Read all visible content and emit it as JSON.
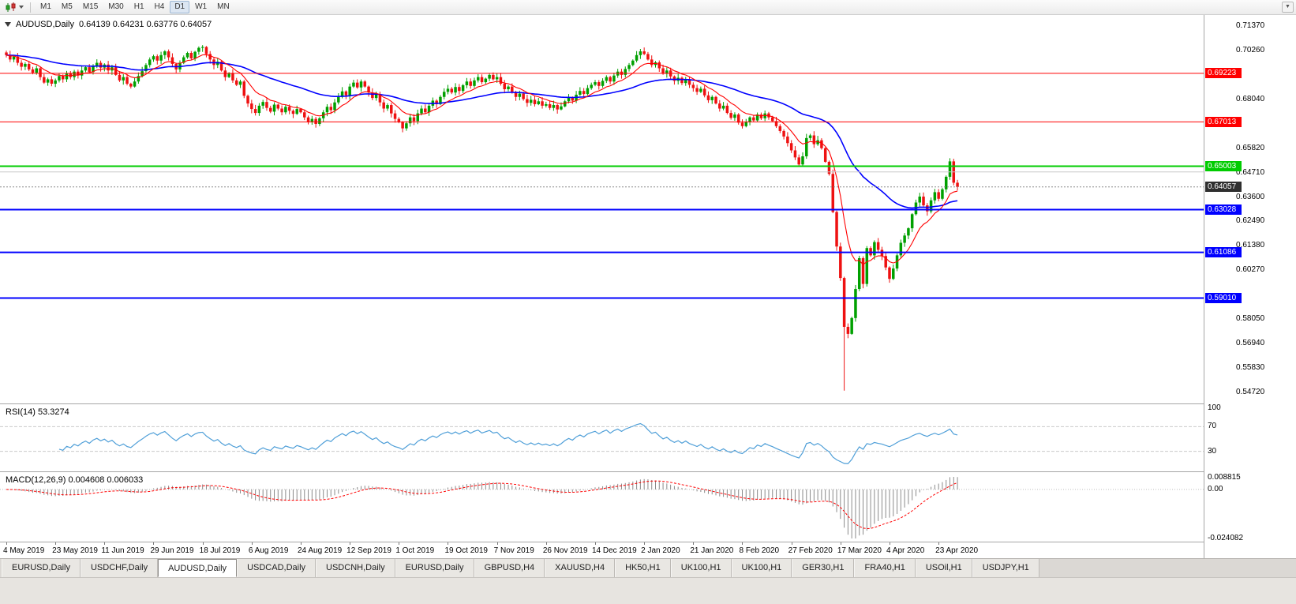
{
  "toolbar": {
    "timeframes": [
      "M1",
      "M5",
      "M15",
      "M30",
      "H1",
      "H4",
      "D1",
      "W1",
      "MN"
    ],
    "active_timeframe": "D1"
  },
  "chart": {
    "symbol_period": "AUDUSD,Daily",
    "ohlc": "0.64139 0.64231 0.63776 0.64057",
    "current_price": 0.64057,
    "current_price_label": "0.64057",
    "up_color": "#00a000",
    "down_color": "#ee1111",
    "current_badge_color": "#2f2f2f"
  },
  "price_scale": {
    "ticks": [
      "0.71370",
      "0.70260",
      "0.68040",
      "0.65820",
      "0.64710",
      "0.63600",
      "0.62490",
      "0.61380",
      "0.60270",
      "0.58050",
      "0.56940",
      "0.55830",
      "0.54720"
    ]
  },
  "levels": [
    {
      "price": 0.69223,
      "label": "0.69223",
      "color": "#ff0000",
      "badge": true,
      "width": 1
    },
    {
      "price": 0.67013,
      "label": "0.67013",
      "color": "#ff0000",
      "badge": true,
      "width": 1
    },
    {
      "price": 0.65003,
      "label": "0.65003",
      "color": "#00cc00",
      "badge": true,
      "width": 2
    },
    {
      "price": 0.6474,
      "label": "",
      "color": "#c8c8c8",
      "badge": false,
      "width": 1
    },
    {
      "price": 0.63028,
      "label": "0.63028",
      "color": "#0000ff",
      "badge": true,
      "width": 2
    },
    {
      "price": 0.61086,
      "label": "0.61086",
      "color": "#0000ff",
      "badge": true,
      "width": 2
    },
    {
      "price": 0.5901,
      "label": "0.59010",
      "color": "#0000ff",
      "badge": true,
      "width": 2
    }
  ],
  "rsi": {
    "label": "RSI(14)",
    "value": "53.3274",
    "period": 14,
    "scale": [
      "100",
      "70",
      "30"
    ],
    "line_color": "#4f9fd8"
  },
  "macd": {
    "label": "MACD(12,26,9)",
    "values": "0.004608 0.006033",
    "scale_max": "0.008815",
    "scale_zero": "0.00",
    "scale_min": "-0.024082",
    "histogram_color": "#8a8a8a",
    "signal_color": "#ff0000"
  },
  "time_axis": {
    "labels": [
      "4 May 2019",
      "23 May 2019",
      "11 Jun 2019",
      "29 Jun 2019",
      "18 Jul 2019",
      "6 Aug 2019",
      "24 Aug 2019",
      "12 Sep 2019",
      "1 Oct 2019",
      "19 Oct 2019",
      "7 Nov 2019",
      "26 Nov 2019",
      "14 Dec 2019",
      "2 Jan 2020",
      "21 Jan 2020",
      "8 Feb 2020",
      "27 Feb 2020",
      "17 Mar 2020",
      "4 Apr 2020",
      "23 Apr 2020"
    ]
  },
  "tabs": {
    "active_index": 2,
    "items": [
      "EURUSD,Daily",
      "USDCHF,Daily",
      "AUDUSD,Daily",
      "USDCAD,Daily",
      "USDCNH,Daily",
      "EURUSD,Daily",
      "GBPUSD,H4",
      "XAUUSD,H4",
      "HK50,H1",
      "UK100,H1",
      "UK100,H1",
      "GER30,H1",
      "FRA40,H1",
      "USOil,H1",
      "USDJPY,H1"
    ]
  },
  "chart_data": {
    "type": "candlestick",
    "symbol": "AUDUSD",
    "timeframe": "Daily",
    "visible_price_range": [
      0.5422,
      0.7187
    ],
    "horizontal_levels": [
      0.69223,
      0.67013,
      0.65003,
      0.63028,
      0.61086,
      0.5901
    ],
    "moving_averages": [
      {
        "type": "ema",
        "period": 10,
        "color": "#ff0000"
      },
      {
        "type": "ema",
        "period": 45,
        "color": "#0000ff"
      }
    ],
    "indicators": [
      {
        "name": "RSI",
        "period": 14,
        "last_value": 53.3274,
        "levels": [
          30,
          70
        ]
      },
      {
        "name": "MACD",
        "fast": 12,
        "slow": 26,
        "signal": 9,
        "last_values": [
          0.004608,
          0.006033
        ],
        "visible_min": -0.024082,
        "visible_max": 0.008815
      }
    ],
    "last_close": 0.64057,
    "spike_low": {
      "index": 222,
      "price": 0.548
    },
    "closes": [
      0.7005,
      0.6985,
      0.6998,
      0.697,
      0.6952,
      0.6965,
      0.694,
      0.6925,
      0.6945,
      0.6905,
      0.688,
      0.6895,
      0.6875,
      0.689,
      0.691,
      0.6895,
      0.6922,
      0.6905,
      0.693,
      0.6912,
      0.6935,
      0.695,
      0.6928,
      0.6955,
      0.697,
      0.6948,
      0.6962,
      0.6935,
      0.695,
      0.6915,
      0.689,
      0.6905,
      0.6875,
      0.6862,
      0.6885,
      0.691,
      0.6932,
      0.696,
      0.6985,
      0.7,
      0.698,
      0.7005,
      0.7022,
      0.6995,
      0.6965,
      0.694,
      0.697,
      0.6995,
      0.7015,
      0.699,
      0.702,
      0.7038,
      0.7042,
      0.701,
      0.6985,
      0.696,
      0.6975,
      0.6935,
      0.6905,
      0.6922,
      0.689,
      0.687,
      0.6885,
      0.682,
      0.6785,
      0.676,
      0.6742,
      0.6775,
      0.6792,
      0.6765,
      0.6748,
      0.678,
      0.6762,
      0.6745,
      0.677,
      0.6752,
      0.6738,
      0.676,
      0.6745,
      0.6722,
      0.67,
      0.6715,
      0.6692,
      0.6718,
      0.6745,
      0.677,
      0.6755,
      0.679,
      0.6815,
      0.684,
      0.6822,
      0.6862,
      0.688,
      0.6858,
      0.6885,
      0.6862,
      0.6835,
      0.681,
      0.6828,
      0.679,
      0.6762,
      0.6778,
      0.674,
      0.6715,
      0.67,
      0.6672,
      0.6695,
      0.6722,
      0.6705,
      0.674,
      0.6762,
      0.6745,
      0.6775,
      0.6798,
      0.6782,
      0.6815,
      0.6838,
      0.6852,
      0.6835,
      0.686,
      0.6842,
      0.6868,
      0.6885,
      0.6865,
      0.689,
      0.6905,
      0.6882,
      0.6898,
      0.6915,
      0.6895,
      0.6905,
      0.6875,
      0.685,
      0.6862,
      0.6838,
      0.6815,
      0.683,
      0.6805,
      0.6788,
      0.6802,
      0.6782,
      0.6795,
      0.6775,
      0.6782,
      0.6765,
      0.6778,
      0.6758,
      0.6772,
      0.6795,
      0.6812,
      0.6798,
      0.6825,
      0.6842,
      0.6828,
      0.6855,
      0.687,
      0.6882,
      0.6865,
      0.6888,
      0.6905,
      0.6885,
      0.6912,
      0.693,
      0.6915,
      0.6942,
      0.696,
      0.698,
      0.7005,
      0.7022,
      0.701,
      0.6985,
      0.696,
      0.6972,
      0.6945,
      0.692,
      0.6935,
      0.6908,
      0.6888,
      0.6902,
      0.6878,
      0.6895,
      0.687,
      0.6855,
      0.6838,
      0.6852,
      0.6822,
      0.68,
      0.6815,
      0.6785,
      0.6762,
      0.6775,
      0.6742,
      0.672,
      0.6735,
      0.6698,
      0.6682,
      0.67,
      0.6722,
      0.6708,
      0.6735,
      0.6718,
      0.674,
      0.6722,
      0.6705,
      0.6682,
      0.666,
      0.6635,
      0.6605,
      0.6572,
      0.654,
      0.6508,
      0.6545,
      0.6628,
      0.664,
      0.66,
      0.6618,
      0.6582,
      0.652,
      0.6465,
      0.6292,
      0.6135,
      0.5992,
      0.577,
      0.5738,
      0.581,
      0.5942,
      0.6082,
      0.5965,
      0.6128,
      0.6095,
      0.6155,
      0.612,
      0.6092,
      0.604,
      0.5988,
      0.6035,
      0.6095,
      0.6152,
      0.6185,
      0.6218,
      0.6282,
      0.6335,
      0.6362,
      0.6322,
      0.6295,
      0.6345,
      0.6382,
      0.6352,
      0.6395,
      0.6452,
      0.6522,
      0.6425,
      0.64057
    ]
  }
}
